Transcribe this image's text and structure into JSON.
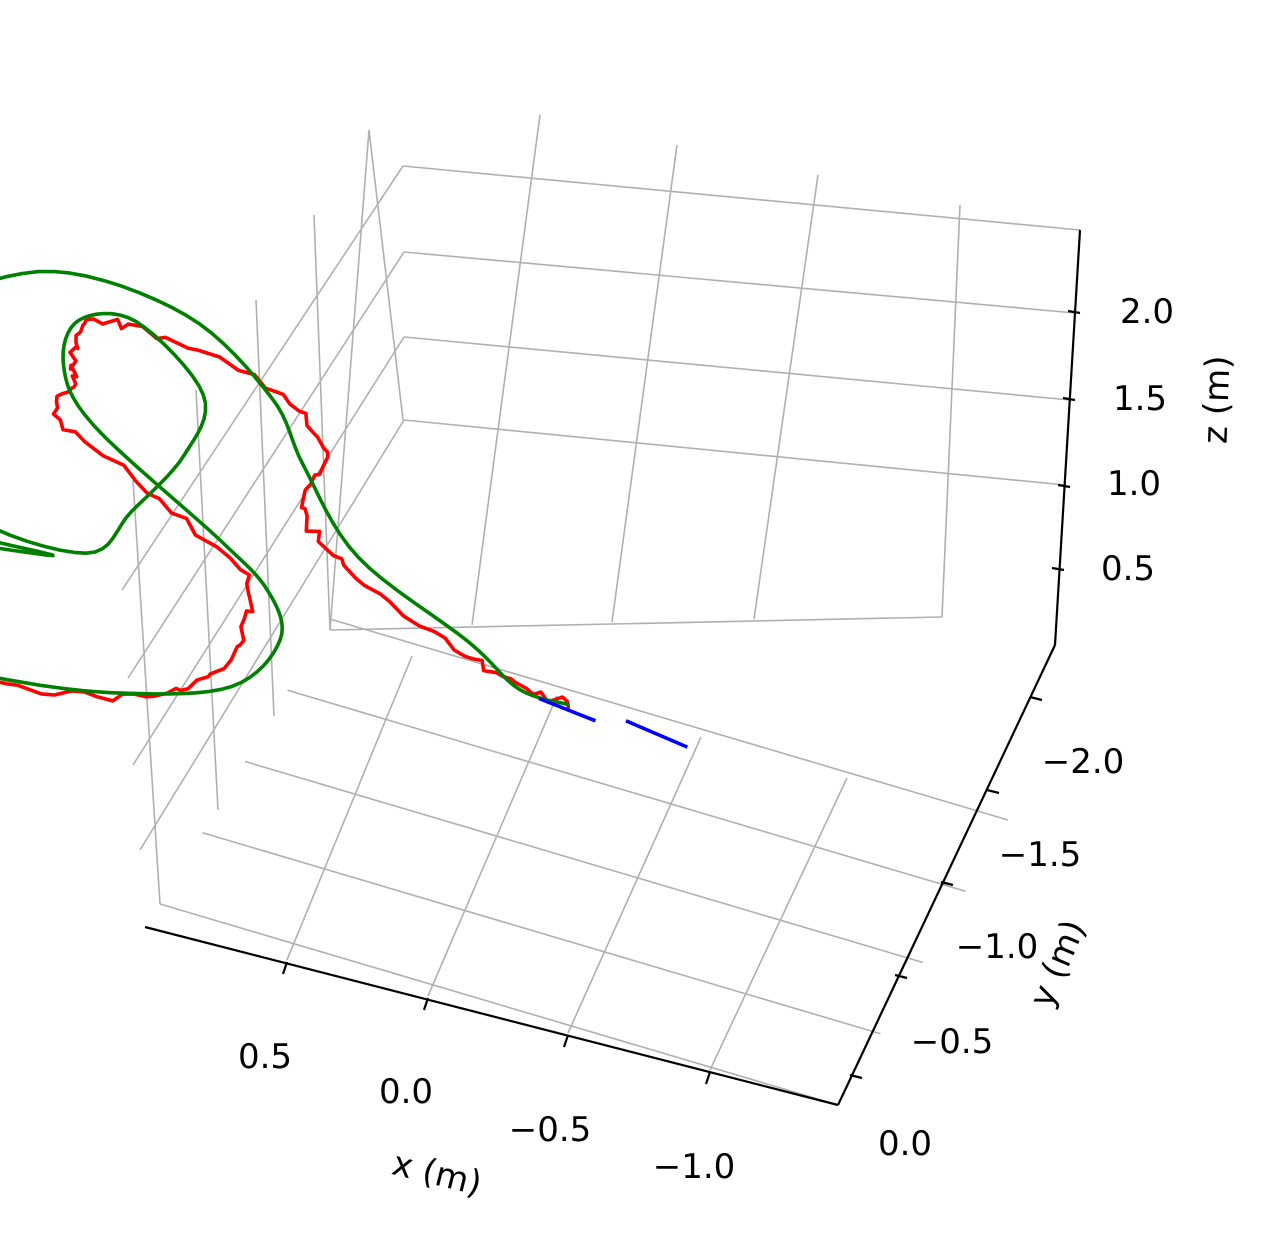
{
  "chart_data": {
    "type": "line3d",
    "title": "",
    "xlabel": "x (m)",
    "ylabel": "y (m)",
    "zlabel": "z (m)",
    "xticks": [
      "0.5",
      "0.0",
      "−0.5",
      "−1.0"
    ],
    "yticks": [
      "−2.0",
      "−1.5",
      "−1.0",
      "−0.5",
      "0.0"
    ],
    "zticks": [
      "2.0",
      "1.5",
      "1.0",
      "0.5"
    ],
    "grid": true,
    "legend": "none",
    "series": [
      {
        "color": "#ff0000",
        "noisy": true,
        "points": [
          [
            -0.38,
            -1.6,
            0.45
          ],
          [
            -0.2,
            -1.75,
            0.5
          ],
          [
            0.0,
            -1.85,
            0.6
          ],
          [
            0.3,
            -1.92,
            0.75
          ],
          [
            0.6,
            -2.0,
            0.9
          ],
          [
            0.9,
            -2.0,
            1.0
          ],
          [
            1.15,
            -1.8,
            1.02
          ],
          [
            1.15,
            -1.45,
            0.98
          ],
          [
            0.95,
            -1.25,
            1.0
          ],
          [
            0.8,
            -1.05,
            1.0
          ],
          [
            0.55,
            -0.92,
            0.92
          ],
          [
            0.25,
            -0.85,
            0.8
          ],
          [
            0.0,
            -0.83,
            0.78
          ],
          [
            -0.3,
            -0.9,
            0.85
          ],
          [
            -0.55,
            -1.05,
            0.9
          ],
          [
            -0.65,
            -1.3,
            0.95
          ],
          [
            -0.75,
            -1.6,
            1.0
          ],
          [
            -0.95,
            -1.7,
            0.98
          ],
          [
            -1.1,
            -1.8,
            0.95
          ],
          [
            -1.3,
            -1.9,
            0.92
          ],
          [
            -1.45,
            -1.85,
            0.85
          ],
          [
            -1.5,
            -1.6,
            0.82
          ],
          [
            -1.35,
            -1.4,
            0.8
          ],
          [
            -1.1,
            -1.3,
            0.75
          ],
          [
            -0.95,
            -1.1,
            0.7
          ],
          [
            -0.9,
            -0.85,
            0.65
          ],
          [
            -0.9,
            -0.7,
            0.6
          ],
          [
            -0.95,
            -0.6,
            0.58
          ]
        ]
      },
      {
        "color": "#008000",
        "noisy": false,
        "points": [
          [
            -0.45,
            -1.6,
            0.48
          ],
          [
            -0.3,
            -1.65,
            0.55
          ],
          [
            -0.25,
            -1.5,
            0.65
          ],
          [
            -0.3,
            -1.35,
            0.72
          ],
          [
            -0.05,
            -1.45,
            0.8
          ],
          [
            0.2,
            -1.6,
            0.9
          ],
          [
            0.5,
            -1.8,
            1.0
          ],
          [
            0.8,
            -1.95,
            1.05
          ],
          [
            1.05,
            -2.0,
            1.08
          ],
          [
            1.2,
            -1.9,
            1.05
          ],
          [
            1.15,
            -1.6,
            0.98
          ],
          [
            0.95,
            -1.35,
            0.95
          ],
          [
            0.7,
            -1.15,
            0.9
          ],
          [
            0.45,
            -0.95,
            0.85
          ],
          [
            0.2,
            -0.85,
            0.8
          ],
          [
            -0.1,
            -0.8,
            0.78
          ],
          [
            -0.4,
            -0.88,
            0.82
          ],
          [
            -0.55,
            -1.0,
            0.88
          ],
          [
            -0.62,
            -1.15,
            0.95
          ],
          [
            -0.8,
            -1.55,
            1.0
          ],
          [
            -1.0,
            -1.75,
            1.0
          ],
          [
            -1.25,
            -1.88,
            0.98
          ],
          [
            -1.4,
            -1.85,
            0.95
          ],
          [
            -1.25,
            -1.6,
            0.92
          ],
          [
            -0.95,
            -1.45,
            0.9
          ],
          [
            -0.6,
            -1.35,
            0.85
          ],
          [
            -0.35,
            -1.3,
            0.78
          ],
          [
            -0.3,
            -1.55,
            0.7
          ],
          [
            -0.5,
            -1.8,
            0.8
          ],
          [
            -0.7,
            -1.95,
            0.92
          ],
          [
            -0.95,
            -2.0,
            1.05
          ],
          [
            -1.3,
            -1.95,
            1.15
          ],
          [
            -1.45,
            -1.75,
            1.1
          ],
          [
            -1.35,
            -1.5,
            1.0
          ],
          [
            -1.15,
            -1.3,
            0.95
          ],
          [
            -1.0,
            -1.1,
            0.75
          ],
          [
            -0.98,
            -0.85,
            0.6
          ],
          [
            -0.92,
            -0.7,
            0.55
          ],
          [
            -0.95,
            -0.6,
            0.58
          ]
        ]
      },
      {
        "color": "#0000ff",
        "noisy": false,
        "points": [
          [
            -0.88,
            -0.62,
            0.62
          ],
          [
            -0.96,
            -0.55,
            0.55
          ]
        ]
      },
      {
        "color": "#0000ff",
        "noisy": false,
        "points": [
          [
            -1.0,
            -0.5,
            0.6
          ],
          [
            -1.08,
            -0.42,
            0.52
          ]
        ]
      }
    ]
  }
}
